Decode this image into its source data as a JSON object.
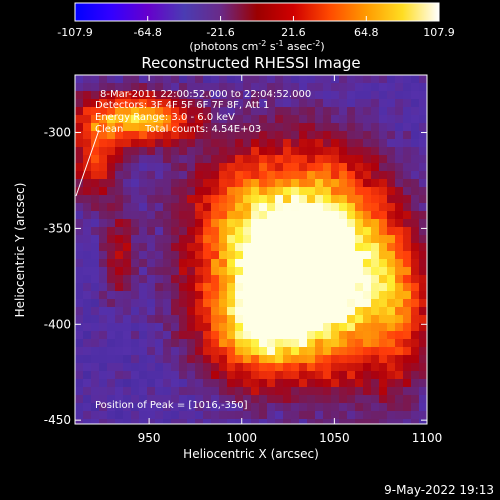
{
  "colorbar": {
    "ticks": [
      "-107.9",
      "-64.8",
      "-21.6",
      "21.6",
      "64.8",
      "107.9"
    ],
    "unit_parts": [
      "(photons cm",
      "-2",
      " s",
      "-1",
      " asec",
      "-2",
      ")"
    ],
    "stops": [
      "#0000ff",
      "#3300ff",
      "#6600cc",
      "#4a3cb3",
      "#6a2a88",
      "#9b0000",
      "#d00000",
      "#ff4a00",
      "#ff9a00",
      "#ffdd22",
      "#ffffff"
    ]
  },
  "title": "Reconstructed RHESSI Image",
  "info": {
    "line1": "8-Mar-2011 22:00:52.000 to 22:04:52.000",
    "line2": "Detectors: 3F 4F 5F 6F 7F 8F, Att 1",
    "line3": "Energy Range: 3.0 - 6.0 keV",
    "line4_left": "Clean",
    "line4_right": "Total counts: 4.54E+03",
    "peak": "Position of Peak = [1016,-350]"
  },
  "axes": {
    "xlabel": "Heliocentric X (arcsec)",
    "ylabel": "Heliocentric Y (arcsec)",
    "xrange": [
      910,
      1100
    ],
    "yrange": [
      -452,
      -270
    ],
    "xticks": [
      "950",
      "1000",
      "1050",
      "1100"
    ],
    "yticks": [
      "-300",
      "-350",
      "-400",
      "-450"
    ]
  },
  "image_data": {
    "type": "heatmap",
    "value_range": [
      -107.9,
      107.9
    ],
    "sources": [
      {
        "x": 1016,
        "y": -350,
        "peak": 107.9
      },
      {
        "x": 950,
        "y": -290,
        "peak": 80
      }
    ]
  },
  "footer": {
    "timestamp": "9-May-2022 19:13"
  }
}
